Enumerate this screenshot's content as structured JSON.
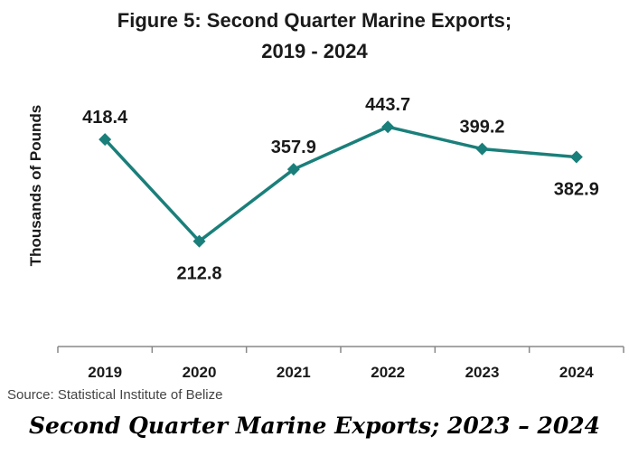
{
  "chart_data": {
    "type": "line",
    "title": "Figure 5: Second Quarter Marine Exports;",
    "title_line2": "2019 - 2024",
    "xlabel": "",
    "ylabel": "Thousands of Pounds",
    "categories": [
      "2019",
      "2020",
      "2021",
      "2022",
      "2023",
      "2024"
    ],
    "series": [
      {
        "values": [
          418.4,
          212.8,
          357.9,
          443.7,
          399.2,
          382.9
        ]
      }
    ],
    "ylim": [
      0,
      700
    ],
    "grid": false,
    "legend": "none",
    "colors": {
      "line": "#1a7f7a",
      "axis": "#888888"
    }
  },
  "source": "Source: Statistical Institute of Belize",
  "caption": "Second Quarter Marine Exports; 2023 – 2024"
}
